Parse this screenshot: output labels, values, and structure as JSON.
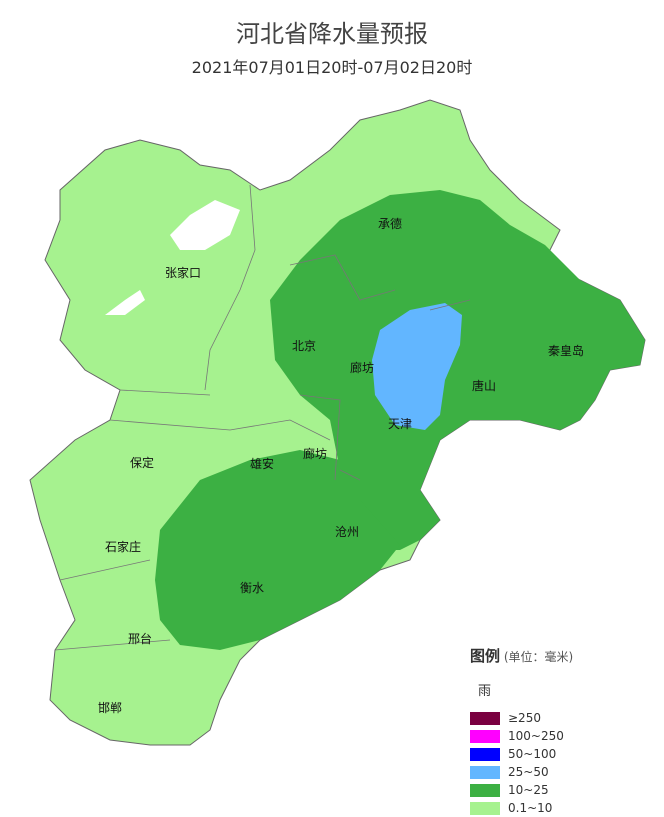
{
  "title": "河北省降水量预报",
  "subtitle": "2021年07月01日20时-07月02日20时",
  "cities": [
    {
      "name": "张家口"
    },
    {
      "name": "承德"
    },
    {
      "name": "北京"
    },
    {
      "name": "廊坊"
    },
    {
      "name": "天津"
    },
    {
      "name": "唐山"
    },
    {
      "name": "秦皇岛"
    },
    {
      "name": "保定"
    },
    {
      "name": "雄安"
    },
    {
      "name": "廊坊"
    },
    {
      "name": "石家庄"
    },
    {
      "name": "沧州"
    },
    {
      "name": "衡水"
    },
    {
      "name": "邢台"
    },
    {
      "name": "邯郸"
    }
  ],
  "legend": {
    "title": "图例",
    "unit": "(单位：毫米)",
    "type": "雨",
    "items": [
      {
        "label": "≥250",
        "color": "#7a0040"
      },
      {
        "label": "100~250",
        "color": "#ff00ff"
      },
      {
        "label": "50~100",
        "color": "#0000ff"
      },
      {
        "label": "25~50",
        "color": "#62b6ff"
      },
      {
        "label": "10~25",
        "color": "#3cb043"
      },
      {
        "label": "0.1~10",
        "color": "#a6f28f"
      }
    ]
  },
  "colors": {
    "light": "#a6f28f",
    "mid": "#3cb043",
    "blue": "#62b6ff"
  }
}
